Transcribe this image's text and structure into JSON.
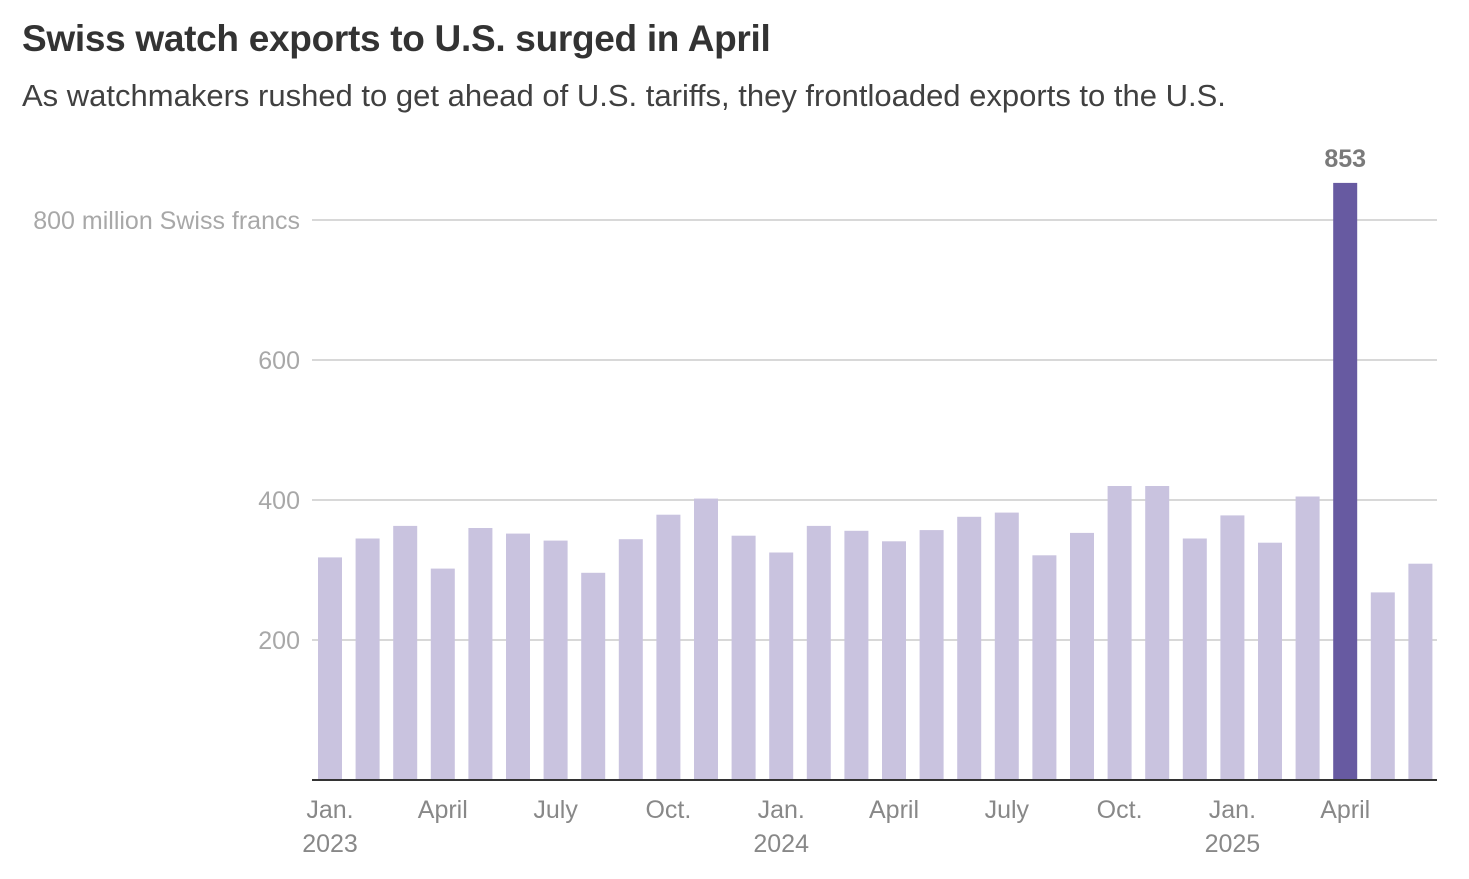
{
  "title": "Swiss watch exports to U.S. surged in April",
  "subtitle": "As watchmakers rushed to get ahead of U.S. tariffs, they frontloaded exports to the U.S.",
  "colors": {
    "bar": "#c9c3df",
    "highlight": "#675aa1",
    "grid": "#cccccc",
    "axis": "#333333"
  },
  "chart_data": {
    "type": "bar",
    "title": "Swiss watch exports to U.S. surged in April",
    "ylabel": "million Swiss francs",
    "ylim": [
      0,
      853
    ],
    "yticks": [
      {
        "value": 200,
        "label": "200"
      },
      {
        "value": 400,
        "label": "400"
      },
      {
        "value": 600,
        "label": "600"
      },
      {
        "value": 800,
        "label": "800 million Swiss francs"
      }
    ],
    "categories": [
      "Jan. 2023",
      "Feb. 2023",
      "Mar. 2023",
      "Apr. 2023",
      "May 2023",
      "Jun. 2023",
      "Jul. 2023",
      "Aug. 2023",
      "Sep. 2023",
      "Oct. 2023",
      "Nov. 2023",
      "Dec. 2023",
      "Jan. 2024",
      "Feb. 2024",
      "Mar. 2024",
      "Apr. 2024",
      "May 2024",
      "Jun. 2024",
      "Jul. 2024",
      "Aug. 2024",
      "Sep. 2024",
      "Oct. 2024",
      "Nov. 2024",
      "Dec. 2024",
      "Jan. 2025",
      "Feb. 2025",
      "Mar. 2025",
      "Apr. 2025",
      "May 2025",
      "Jun. 2025"
    ],
    "values": [
      318,
      345,
      363,
      302,
      360,
      352,
      342,
      296,
      344,
      379,
      402,
      349,
      325,
      363,
      356,
      341,
      357,
      376,
      382,
      321,
      353,
      420,
      420,
      345,
      378,
      339,
      405,
      853,
      268,
      309
    ],
    "highlight_index": 27,
    "annotation": {
      "index": 27,
      "label": "853"
    },
    "xticks": [
      {
        "index": 0,
        "line1": "Jan.",
        "line2": "2023"
      },
      {
        "index": 3,
        "line1": "April",
        "line2": ""
      },
      {
        "index": 6,
        "line1": "July",
        "line2": ""
      },
      {
        "index": 9,
        "line1": "Oct.",
        "line2": ""
      },
      {
        "index": 12,
        "line1": "Jan.",
        "line2": "2024"
      },
      {
        "index": 15,
        "line1": "April",
        "line2": ""
      },
      {
        "index": 18,
        "line1": "July",
        "line2": ""
      },
      {
        "index": 21,
        "line1": "Oct.",
        "line2": ""
      },
      {
        "index": 24,
        "line1": "Jan.",
        "line2": "2025"
      },
      {
        "index": 27,
        "line1": "April",
        "line2": ""
      }
    ]
  }
}
